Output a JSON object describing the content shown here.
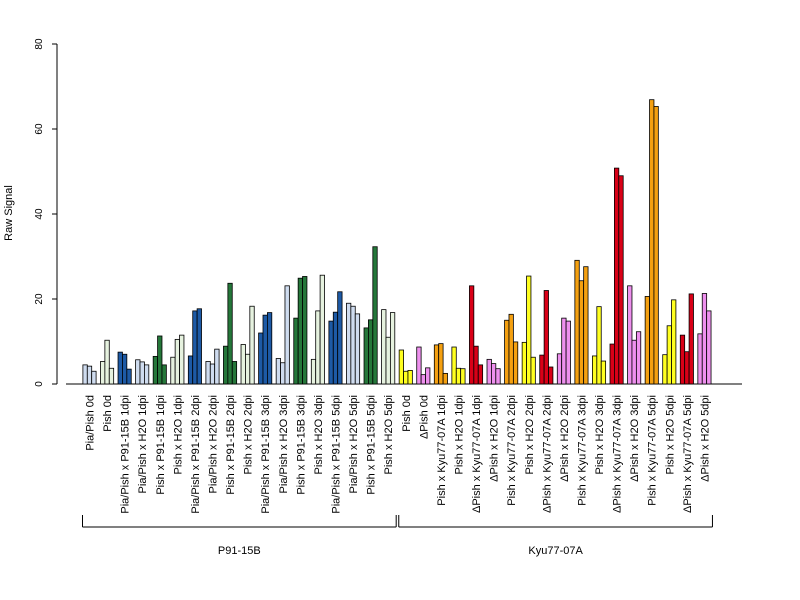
{
  "chart_data": {
    "type": "bar",
    "ylabel": "Raw Signal",
    "xlabel": "",
    "ylim": [
      0,
      80
    ],
    "yticks": [
      0,
      20,
      40,
      60,
      80
    ],
    "grid": false,
    "legend": "none",
    "palette": {
      "lightblue": "#cfdcef",
      "lightgreen": "#e6f2df",
      "darkgreen": "#25773a",
      "darkblue": "#1d5aa6",
      "yellow": "#ffff20",
      "violet": "#ee90ee",
      "orange": "#f4a011",
      "red": "#d90017"
    },
    "categories": [
      {
        "label": "Pia/Pish 0d",
        "color": "lightblue",
        "values": [
          4.5,
          4.2,
          3.0
        ]
      },
      {
        "label": "Pish 0d",
        "color": "lightgreen",
        "values": [
          5.3,
          10.3,
          3.7
        ]
      },
      {
        "label": "Pia/Pish x P91-15B 1dpi",
        "color": "darkblue",
        "values": [
          7.5,
          7.0,
          3.5
        ]
      },
      {
        "label": "Pia/Pish x H2O 1dpi",
        "color": "lightblue",
        "values": [
          5.7,
          5.2,
          4.5
        ]
      },
      {
        "label": "Pish x P91-15B 1dpi",
        "color": "darkgreen",
        "values": [
          6.5,
          11.3,
          4.5
        ]
      },
      {
        "label": "Pish x H2O 1dpi",
        "color": "lightgreen",
        "values": [
          6.3,
          10.5,
          11.5
        ]
      },
      {
        "label": "Pia/Pish x P91-15B 2dpi",
        "color": "darkblue",
        "values": [
          6.6,
          17.2,
          17.7
        ]
      },
      {
        "label": "Pia/Pish x H2O 2dpi",
        "color": "lightblue",
        "values": [
          5.3,
          4.7,
          8.2
        ]
      },
      {
        "label": "Pish x P91-15B 2dpi",
        "color": "darkgreen",
        "values": [
          8.9,
          23.7,
          5.3
        ]
      },
      {
        "label": "Pish x H2O 2dpi",
        "color": "lightgreen",
        "values": [
          9.3,
          7.0,
          18.3
        ]
      },
      {
        "label": "Pia/Pish x P91-15B 3dpi",
        "color": "darkblue",
        "values": [
          12.0,
          16.2,
          16.8
        ]
      },
      {
        "label": "Pia/Pish x H2O 3dpi",
        "color": "lightblue",
        "values": [
          6.0,
          5.0,
          23.1
        ]
      },
      {
        "label": "Pish x P91-15B 3dpi",
        "color": "darkgreen",
        "values": [
          15.5,
          24.9,
          25.3
        ]
      },
      {
        "label": "Pish x H2O 3dpi",
        "color": "lightgreen",
        "values": [
          5.8,
          17.2,
          25.6
        ]
      },
      {
        "label": "Pia/Pish x P91-15B 5dpi",
        "color": "darkblue",
        "values": [
          14.8,
          16.9,
          21.7
        ]
      },
      {
        "label": "Pia/Pish x H2O 5dpi",
        "color": "lightblue",
        "values": [
          19.0,
          18.3,
          16.5
        ]
      },
      {
        "label": "Pish x P91-15B 5dpi",
        "color": "darkgreen",
        "values": [
          13.2,
          15.1,
          32.3
        ]
      },
      {
        "label": "Pish x H2O 5dpi",
        "color": "lightgreen",
        "values": [
          17.5,
          11.0,
          16.8
        ]
      },
      {
        "label": "Pish 0d",
        "color": "yellow",
        "values": [
          8.0,
          3.0,
          3.2
        ]
      },
      {
        "label": "ΔPish 0d",
        "color": "violet",
        "values": [
          8.7,
          2.2,
          3.8
        ]
      },
      {
        "label": "Pish x Kyu77-07A 1dpi",
        "color": "orange",
        "values": [
          9.2,
          9.5,
          2.5
        ]
      },
      {
        "label": "Pish x H2O 1dpi",
        "color": "yellow",
        "values": [
          8.7,
          3.7,
          3.6
        ]
      },
      {
        "label": "ΔPish x Kyu77-07A 1dpi",
        "color": "red",
        "values": [
          23.1,
          8.9,
          4.5
        ]
      },
      {
        "label": "ΔPish x H2O 1dpi",
        "color": "violet",
        "values": [
          5.8,
          4.8,
          3.6
        ]
      },
      {
        "label": "Pish x Kyu77-07A 2dpi",
        "color": "orange",
        "values": [
          15.0,
          16.4,
          9.9
        ]
      },
      {
        "label": "Pish x H2O 2dpi",
        "color": "yellow",
        "values": [
          9.8,
          25.4,
          6.3
        ]
      },
      {
        "label": "ΔPish x Kyu77-07A 2dpi",
        "color": "red",
        "values": [
          6.8,
          22.0,
          4.0
        ]
      },
      {
        "label": "ΔPish x H2O 2dpi",
        "color": "violet",
        "values": [
          7.1,
          15.5,
          14.8
        ]
      },
      {
        "label": "Pish x Kyu77-07A 3dpi",
        "color": "orange",
        "values": [
          29.1,
          24.3,
          27.6
        ]
      },
      {
        "label": "Pish x H2O 3dpi",
        "color": "yellow",
        "values": [
          6.6,
          18.2,
          5.4
        ]
      },
      {
        "label": "ΔPish x Kyu77-07A 3dpi",
        "color": "red",
        "values": [
          9.4,
          50.8,
          49.0
        ]
      },
      {
        "label": "ΔPish x H2O 3dpi",
        "color": "violet",
        "values": [
          23.1,
          10.3,
          12.3
        ]
      },
      {
        "label": "Pish x Kyu77-07A 5dpi",
        "color": "orange",
        "values": [
          20.6,
          66.9,
          65.3
        ]
      },
      {
        "label": "Pish x H2O 5dpi",
        "color": "yellow",
        "values": [
          6.9,
          13.7,
          19.8
        ]
      },
      {
        "label": "ΔPish x Kyu77-07A 5dpi",
        "color": "red",
        "values": [
          11.5,
          7.6,
          21.2
        ]
      },
      {
        "label": "ΔPish x H2O 5dpi",
        "color": "violet",
        "values": [
          11.8,
          21.3,
          17.2
        ]
      }
    ],
    "groups": [
      {
        "label": "P91-15B",
        "from": 0,
        "to": 17
      },
      {
        "label": "Kyu77-07A",
        "from": 18,
        "to": 35
      }
    ]
  }
}
